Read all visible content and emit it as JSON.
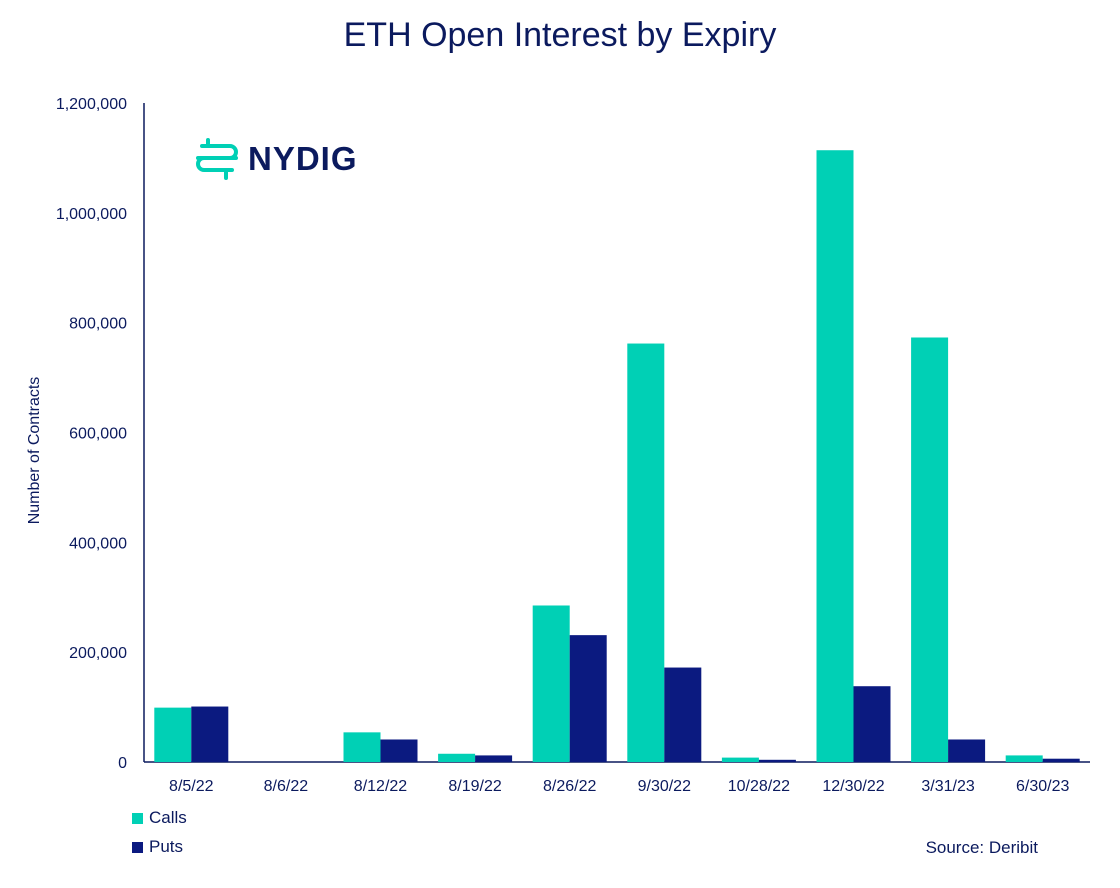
{
  "logo": {
    "text": "NYDIG"
  },
  "source": "Source: Deribit",
  "colors": {
    "calls": "#00d0b5",
    "puts": "#0b1a80",
    "text": "#0b1a5e"
  },
  "chart_data": {
    "type": "bar",
    "title": "ETH Open Interest by Expiry",
    "xlabel": "",
    "ylabel": "Number of Contracts",
    "ylim": [
      0,
      1200000
    ],
    "yticks": [
      0,
      200000,
      400000,
      600000,
      800000,
      1000000,
      1200000
    ],
    "ytick_labels": [
      "0",
      "200,000",
      "400,000",
      "600,000",
      "800,000",
      "1,000,000",
      "1,200,000"
    ],
    "categories": [
      "8/5/22",
      "8/6/22",
      "8/12/22",
      "8/19/22",
      "8/26/22",
      "9/30/22",
      "10/28/22",
      "12/30/22",
      "3/31/23",
      "6/30/23"
    ],
    "series": [
      {
        "name": "Calls",
        "values": [
          99000,
          0,
          54000,
          15000,
          285000,
          762000,
          8000,
          1114000,
          773000,
          12000
        ]
      },
      {
        "name": "Puts",
        "values": [
          101000,
          0,
          41000,
          12000,
          231000,
          172000,
          4000,
          138000,
          41000,
          6000
        ]
      }
    ],
    "grid": false,
    "legend_position": "bottom-left"
  }
}
